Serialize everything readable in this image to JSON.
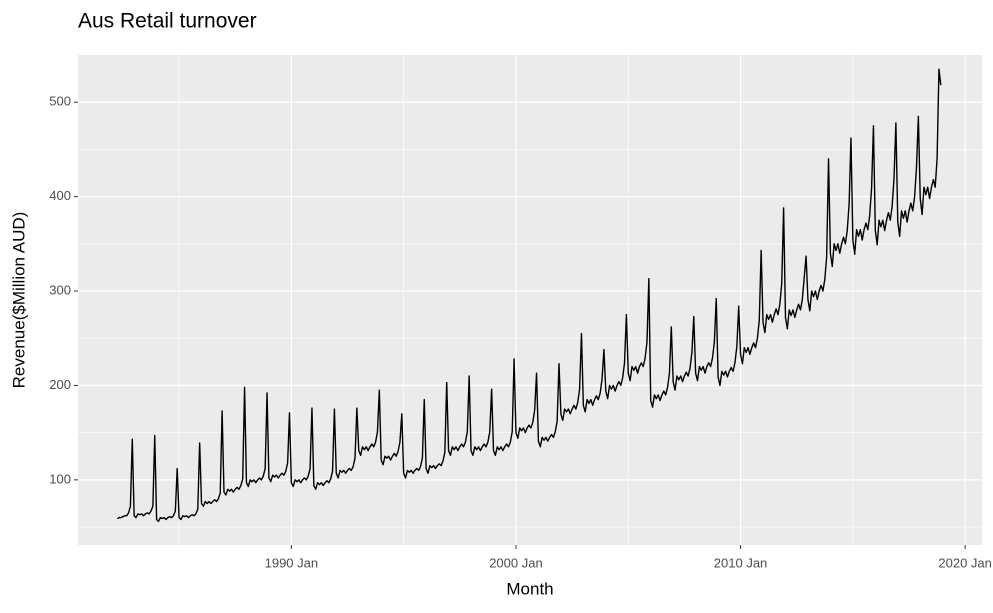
{
  "chart_data": {
    "type": "line",
    "title": "Aus Retail turnover",
    "x_label": "Month",
    "y_label": "Revenue($Million AUD)",
    "color": "#000000",
    "grid": true,
    "xlim": [
      "1980 Jul",
      "2020 Oct"
    ],
    "xticks": [
      "1990 Jan",
      "2000 Jan",
      "2010 Jan",
      "2020 Jan"
    ],
    "ylim": [
      31,
      550
    ],
    "yticks": [
      100,
      200,
      300,
      400,
      500
    ],
    "x": [
      "1982 Apr",
      "1982 May",
      "1982 Jun",
      "1982 Jul",
      "1982 Aug",
      "1982 Sep",
      "1982 Oct",
      "1982 Nov",
      "1982 Dec",
      "1983 Jan",
      "1983 Feb",
      "1983 Mar",
      "1983 Apr",
      "1983 May",
      "1983 Jun",
      "1983 Jul",
      "1983 Aug",
      "1983 Sep",
      "1983 Oct",
      "1983 Nov",
      "1983 Dec",
      "1984 Jan",
      "1984 Feb",
      "1984 Mar",
      "1984 Apr",
      "1984 May",
      "1984 Jun",
      "1984 Jul",
      "1984 Aug",
      "1984 Sep",
      "1984 Oct",
      "1984 Nov",
      "1984 Dec",
      "1985 Jan",
      "1985 Feb",
      "1985 Mar",
      "1985 Apr",
      "1985 May",
      "1985 Jun",
      "1985 Jul",
      "1985 Aug",
      "1985 Sep",
      "1985 Oct",
      "1985 Nov",
      "1985 Dec",
      "1986 Jan",
      "1986 Feb",
      "1986 Mar",
      "1986 Apr",
      "1986 May",
      "1986 Jun",
      "1986 Jul",
      "1986 Aug",
      "1986 Sep",
      "1986 Oct",
      "1986 Nov",
      "1986 Dec",
      "1987 Jan",
      "1987 Feb",
      "1987 Mar",
      "1987 Apr",
      "1987 May",
      "1987 Jun",
      "1987 Jul",
      "1987 Aug",
      "1987 Sep",
      "1987 Oct",
      "1987 Nov",
      "1987 Dec",
      "1988 Jan",
      "1988 Feb",
      "1988 Mar",
      "1988 Apr",
      "1988 May",
      "1988 Jun",
      "1988 Jul",
      "1988 Aug",
      "1988 Sep",
      "1988 Oct",
      "1988 Nov",
      "1988 Dec",
      "1989 Jan",
      "1989 Feb",
      "1989 Mar",
      "1989 Apr",
      "1989 May",
      "1989 Jun",
      "1989 Jul",
      "1989 Aug",
      "1989 Sep",
      "1989 Oct",
      "1989 Nov",
      "1989 Dec",
      "1990 Jan",
      "1990 Feb",
      "1990 Mar",
      "1990 Apr",
      "1990 May",
      "1990 Jun",
      "1990 Jul",
      "1990 Aug",
      "1990 Sep",
      "1990 Oct",
      "1990 Nov",
      "1990 Dec",
      "1991 Jan",
      "1991 Feb",
      "1991 Mar",
      "1991 Apr",
      "1991 May",
      "1991 Jun",
      "1991 Jul",
      "1991 Aug",
      "1991 Sep",
      "1991 Oct",
      "1991 Nov",
      "1991 Dec",
      "1992 Jan",
      "1992 Feb",
      "1992 Mar",
      "1992 Apr",
      "1992 May",
      "1992 Jun",
      "1992 Jul",
      "1992 Aug",
      "1992 Sep",
      "1992 Oct",
      "1992 Nov",
      "1992 Dec",
      "1993 Jan",
      "1993 Feb",
      "1993 Mar",
      "1993 Apr",
      "1993 May",
      "1993 Jun",
      "1993 Jul",
      "1993 Aug",
      "1993 Sep",
      "1993 Oct",
      "1993 Nov",
      "1993 Dec",
      "1994 Jan",
      "1994 Feb",
      "1994 Mar",
      "1994 Apr",
      "1994 May",
      "1994 Jun",
      "1994 Jul",
      "1994 Aug",
      "1994 Sep",
      "1994 Oct",
      "1994 Nov",
      "1994 Dec",
      "1995 Jan",
      "1995 Feb",
      "1995 Mar",
      "1995 Apr",
      "1995 May",
      "1995 Jun",
      "1995 Jul",
      "1995 Aug",
      "1995 Sep",
      "1995 Oct",
      "1995 Nov",
      "1995 Dec",
      "1996 Jan",
      "1996 Feb",
      "1996 Mar",
      "1996 Apr",
      "1996 May",
      "1996 Jun",
      "1996 Jul",
      "1996 Aug",
      "1996 Sep",
      "1996 Oct",
      "1996 Nov",
      "1996 Dec",
      "1997 Jan",
      "1997 Feb",
      "1997 Mar",
      "1997 Apr",
      "1997 May",
      "1997 Jun",
      "1997 Jul",
      "1997 Aug",
      "1997 Sep",
      "1997 Oct",
      "1997 Nov",
      "1997 Dec",
      "1998 Jan",
      "1998 Feb",
      "1998 Mar",
      "1998 Apr",
      "1998 May",
      "1998 Jun",
      "1998 Jul",
      "1998 Aug",
      "1998 Sep",
      "1998 Oct",
      "1998 Nov",
      "1998 Dec",
      "1999 Jan",
      "1999 Feb",
      "1999 Mar",
      "1999 Apr",
      "1999 May",
      "1999 Jun",
      "1999 Jul",
      "1999 Aug",
      "1999 Sep",
      "1999 Oct",
      "1999 Nov",
      "1999 Dec",
      "2000 Jan",
      "2000 Feb",
      "2000 Mar",
      "2000 Apr",
      "2000 May",
      "2000 Jun",
      "2000 Jul",
      "2000 Aug",
      "2000 Sep",
      "2000 Oct",
      "2000 Nov",
      "2000 Dec",
      "2001 Jan",
      "2001 Feb",
      "2001 Mar",
      "2001 Apr",
      "2001 May",
      "2001 Jun",
      "2001 Jul",
      "2001 Aug",
      "2001 Sep",
      "2001 Oct",
      "2001 Nov",
      "2001 Dec",
      "2002 Jan",
      "2002 Feb",
      "2002 Mar",
      "2002 Apr",
      "2002 May",
      "2002 Jun",
      "2002 Jul",
      "2002 Aug",
      "2002 Sep",
      "2002 Oct",
      "2002 Nov",
      "2002 Dec",
      "2003 Jan",
      "2003 Feb",
      "2003 Mar",
      "2003 Apr",
      "2003 May",
      "2003 Jun",
      "2003 Jul",
      "2003 Aug",
      "2003 Sep",
      "2003 Oct",
      "2003 Nov",
      "2003 Dec",
      "2004 Jan",
      "2004 Feb",
      "2004 Mar",
      "2004 Apr",
      "2004 May",
      "2004 Jun",
      "2004 Jul",
      "2004 Aug",
      "2004 Sep",
      "2004 Oct",
      "2004 Nov",
      "2004 Dec",
      "2005 Jan",
      "2005 Feb",
      "2005 Mar",
      "2005 Apr",
      "2005 May",
      "2005 Jun",
      "2005 Jul",
      "2005 Aug",
      "2005 Sep",
      "2005 Oct",
      "2005 Nov",
      "2005 Dec",
      "2006 Jan",
      "2006 Feb",
      "2006 Mar",
      "2006 Apr",
      "2006 May",
      "2006 Jun",
      "2006 Jul",
      "2006 Aug",
      "2006 Sep",
      "2006 Oct",
      "2006 Nov",
      "2006 Dec",
      "2007 Jan",
      "2007 Feb",
      "2007 Mar",
      "2007 Apr",
      "2007 May",
      "2007 Jun",
      "2007 Jul",
      "2007 Aug",
      "2007 Sep",
      "2007 Oct",
      "2007 Nov",
      "2007 Dec",
      "2008 Jan",
      "2008 Feb",
      "2008 Mar",
      "2008 Apr",
      "2008 May",
      "2008 Jun",
      "2008 Jul",
      "2008 Aug",
      "2008 Sep",
      "2008 Oct",
      "2008 Nov",
      "2008 Dec",
      "2009 Jan",
      "2009 Feb",
      "2009 Mar",
      "2009 Apr",
      "2009 May",
      "2009 Jun",
      "2009 Jul",
      "2009 Aug",
      "2009 Sep",
      "2009 Oct",
      "2009 Nov",
      "2009 Dec",
      "2010 Jan",
      "2010 Feb",
      "2010 Mar",
      "2010 Apr",
      "2010 May",
      "2010 Jun",
      "2010 Jul",
      "2010 Aug",
      "2010 Sep",
      "2010 Oct",
      "2010 Nov",
      "2010 Dec",
      "2011 Jan",
      "2011 Feb",
      "2011 Mar",
      "2011 Apr",
      "2011 May",
      "2011 Jun",
      "2011 Jul",
      "2011 Aug",
      "2011 Sep",
      "2011 Oct",
      "2011 Nov",
      "2011 Dec",
      "2012 Jan",
      "2012 Feb",
      "2012 Mar",
      "2012 Apr",
      "2012 May",
      "2012 Jun",
      "2012 Jul",
      "2012 Aug",
      "2012 Sep",
      "2012 Oct",
      "2012 Nov",
      "2012 Dec",
      "2013 Jan",
      "2013 Feb",
      "2013 Mar",
      "2013 Apr",
      "2013 May",
      "2013 Jun",
      "2013 Jul",
      "2013 Aug",
      "2013 Sep",
      "2013 Oct",
      "2013 Nov",
      "2013 Dec",
      "2014 Jan",
      "2014 Feb",
      "2014 Mar",
      "2014 Apr",
      "2014 May",
      "2014 Jun",
      "2014 Jul",
      "2014 Aug",
      "2014 Sep",
      "2014 Oct",
      "2014 Nov",
      "2014 Dec",
      "2015 Jan",
      "2015 Feb",
      "2015 Mar",
      "2015 Apr",
      "2015 May",
      "2015 Jun",
      "2015 Jul",
      "2015 Aug",
      "2015 Sep",
      "2015 Oct",
      "2015 Nov",
      "2015 Dec",
      "2016 Jan",
      "2016 Feb",
      "2016 Mar",
      "2016 Apr",
      "2016 May",
      "2016 Jun",
      "2016 Jul",
      "2016 Aug",
      "2016 Sep",
      "2016 Oct",
      "2016 Nov",
      "2016 Dec",
      "2017 Jan",
      "2017 Feb",
      "2017 Mar",
      "2017 Apr",
      "2017 May",
      "2017 Jun",
      "2017 Jul",
      "2017 Aug",
      "2017 Sep",
      "2017 Oct",
      "2017 Nov",
      "2017 Dec",
      "2018 Jan",
      "2018 Feb",
      "2018 Mar",
      "2018 Apr",
      "2018 May",
      "2018 Jun",
      "2018 Jul",
      "2018 Aug",
      "2018 Sep",
      "2018 Oct",
      "2018 Nov",
      "2018 Dec"
    ],
    "values": [
      59,
      60,
      60,
      61,
      62,
      62,
      65,
      72,
      143,
      62,
      60,
      64,
      63,
      64,
      62,
      64,
      65,
      64,
      67,
      72,
      147,
      58,
      56,
      60,
      59,
      60,
      58,
      60,
      61,
      60,
      62,
      67,
      112,
      60,
      58,
      62,
      61,
      62,
      60,
      62,
      63,
      62,
      64,
      69,
      139,
      75,
      72,
      77,
      75,
      77,
      75,
      77,
      79,
      77,
      80,
      86,
      173,
      87,
      84,
      90,
      88,
      90,
      87,
      90,
      92,
      90,
      94,
      101,
      198,
      97,
      93,
      100,
      98,
      100,
      97,
      100,
      102,
      100,
      104,
      112,
      192,
      102,
      98,
      105,
      103,
      105,
      102,
      105,
      107,
      105,
      109,
      118,
      171,
      97,
      93,
      100,
      98,
      100,
      97,
      100,
      102,
      100,
      104,
      112,
      176,
      94,
      90,
      97,
      95,
      97,
      94,
      97,
      99,
      97,
      101,
      109,
      175,
      107,
      102,
      110,
      108,
      110,
      107,
      110,
      112,
      110,
      114,
      123,
      176,
      131,
      126,
      135,
      132,
      135,
      131,
      135,
      138,
      135,
      140,
      151,
      195,
      121,
      116,
      125,
      123,
      125,
      121,
      125,
      128,
      125,
      130,
      140,
      170,
      107,
      102,
      110,
      108,
      110,
      107,
      110,
      112,
      110,
      114,
      123,
      185,
      112,
      107,
      115,
      113,
      115,
      112,
      115,
      117,
      115,
      120,
      129,
      203,
      131,
      126,
      135,
      132,
      135,
      131,
      135,
      138,
      135,
      140,
      151,
      210,
      131,
      126,
      135,
      132,
      135,
      131,
      135,
      138,
      135,
      140,
      151,
      196,
      131,
      126,
      135,
      132,
      135,
      131,
      135,
      138,
      135,
      140,
      151,
      228,
      150,
      144,
      155,
      152,
      155,
      150,
      155,
      158,
      155,
      161,
      174,
      213,
      141,
      135,
      145,
      142,
      145,
      141,
      145,
      148,
      145,
      151,
      162,
      223,
      170,
      163,
      175,
      172,
      175,
      170,
      175,
      179,
      175,
      182,
      196,
      255,
      179,
      172,
      185,
      181,
      185,
      179,
      185,
      189,
      185,
      192,
      207,
      238,
      194,
      186,
      200,
      196,
      200,
      194,
      200,
      204,
      200,
      208,
      224,
      275,
      213,
      205,
      220,
      216,
      220,
      213,
      220,
      224,
      220,
      229,
      246,
      313,
      184,
      177,
      190,
      186,
      190,
      184,
      190,
      194,
      190,
      198,
      213,
      262,
      204,
      195,
      210,
      206,
      210,
      204,
      210,
      214,
      210,
      218,
      235,
      273,
      213,
      205,
      220,
      216,
      220,
      213,
      220,
      224,
      220,
      229,
      246,
      292,
      209,
      200,
      215,
      211,
      215,
      209,
      215,
      219,
      215,
      224,
      241,
      284,
      233,
      223,
      240,
      235,
      240,
      233,
      240,
      245,
      240,
      250,
      269,
      343,
      267,
      256,
      275,
      270,
      275,
      267,
      275,
      281,
      275,
      286,
      308,
      388,
      272,
      260,
      280,
      274,
      280,
      272,
      280,
      286,
      280,
      291,
      314,
      337,
      291,
      279,
      300,
      294,
      300,
      291,
      300,
      306,
      300,
      312,
      336,
      440,
      340,
      326,
      350,
      343,
      350,
      340,
      350,
      357,
      350,
      364,
      392,
      462,
      354,
      339,
      365,
      358,
      365,
      354,
      365,
      372,
      365,
      380,
      409,
      475,
      364,
      349,
      375,
      368,
      375,
      364,
      375,
      383,
      375,
      390,
      420,
      478,
      373,
      358,
      385,
      377,
      385,
      373,
      385,
      393,
      385,
      400,
      431,
      485,
      398,
      381,
      410,
      402,
      410,
      398,
      410,
      418,
      410,
      440,
      535,
      518
    ]
  }
}
